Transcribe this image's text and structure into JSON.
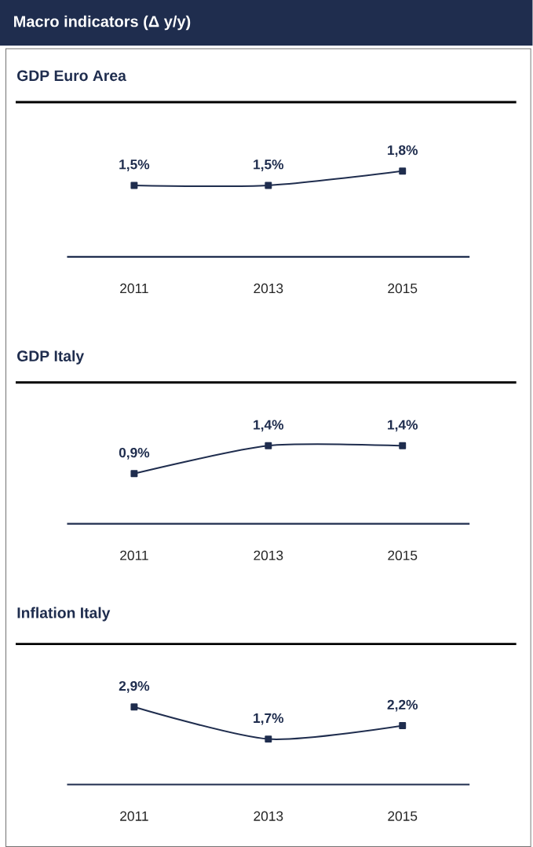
{
  "chart_data": [
    {
      "type": "line",
      "title": "Macro indicators (Δ y/y)",
      "subtitle": "GDP Euro Area",
      "categories": [
        "2011",
        "2013",
        "2015"
      ],
      "series": [
        {
          "color": "#1f2d4e",
          "values": [
            1.5,
            1.5,
            1.8
          ],
          "value_labels": [
            "1,5%",
            "1,5%",
            "1,8%"
          ]
        }
      ],
      "marker": "square",
      "line_style": "solid",
      "tick_labels": "x"
    },
    {
      "type": "line",
      "title": "GDP Italy",
      "categories": [
        "2011",
        "2013",
        "2015"
      ],
      "series": [
        {
          "color": "#1f2d4e",
          "values": [
            0.9,
            1.4,
            1.4
          ],
          "value_labels": [
            "0,9%",
            "1,4%",
            "1,4%"
          ]
        }
      ],
      "marker": "square",
      "line_style": "solid",
      "tick_labels": "x"
    },
    {
      "type": "line",
      "title": "Inflation Italy",
      "categories": [
        "2011",
        "2013",
        "2015"
      ],
      "series": [
        {
          "color": "#1f2d4e",
          "values": [
            2.9,
            1.7,
            2.2
          ],
          "value_labels": [
            "2,9%",
            "1,7%",
            "2,2%"
          ]
        }
      ],
      "marker": "square",
      "line_style": "solid",
      "tick_labels": "x"
    }
  ]
}
